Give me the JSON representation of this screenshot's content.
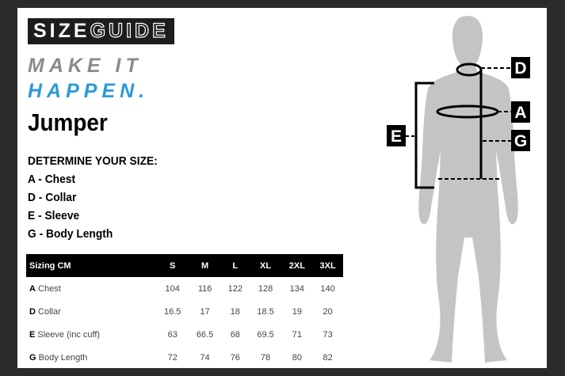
{
  "logo": {
    "part1": "SIZE",
    "part2": "GUIDE"
  },
  "tagline": {
    "line1": "MAKE IT",
    "line2": "HAPPEN."
  },
  "title": "Jumper",
  "determine": {
    "heading": "DETERMINE YOUR SIZE:",
    "items": [
      "A - Chest",
      "D - Collar",
      "E - Sleeve",
      "G - Body Length"
    ]
  },
  "table": {
    "headers": [
      "Sizing CM",
      "S",
      "M",
      "L",
      "XL",
      "2XL",
      "3XL"
    ],
    "rows": [
      {
        "code": "A",
        "label": "Chest",
        "values": [
          "104",
          "116",
          "122",
          "128",
          "134",
          "140"
        ]
      },
      {
        "code": "D",
        "label": "Collar",
        "values": [
          "16.5",
          "17",
          "18",
          "18.5",
          "19",
          "20"
        ]
      },
      {
        "code": "E",
        "label": "Sleeve (inc cuff)",
        "values": [
          "63",
          "66.5",
          "68",
          "69.5",
          "71",
          "73"
        ]
      },
      {
        "code": "G",
        "label": "Body Length",
        "values": [
          "72",
          "74",
          "76",
          "78",
          "80",
          "82"
        ]
      }
    ]
  },
  "diagram": {
    "labels": {
      "d": "D",
      "a": "A",
      "g": "G",
      "e": "E"
    }
  },
  "colors": {
    "accent": "#2a9ad8",
    "grey": "#8a8a8a",
    "silhouette": "#c4c4c4"
  }
}
